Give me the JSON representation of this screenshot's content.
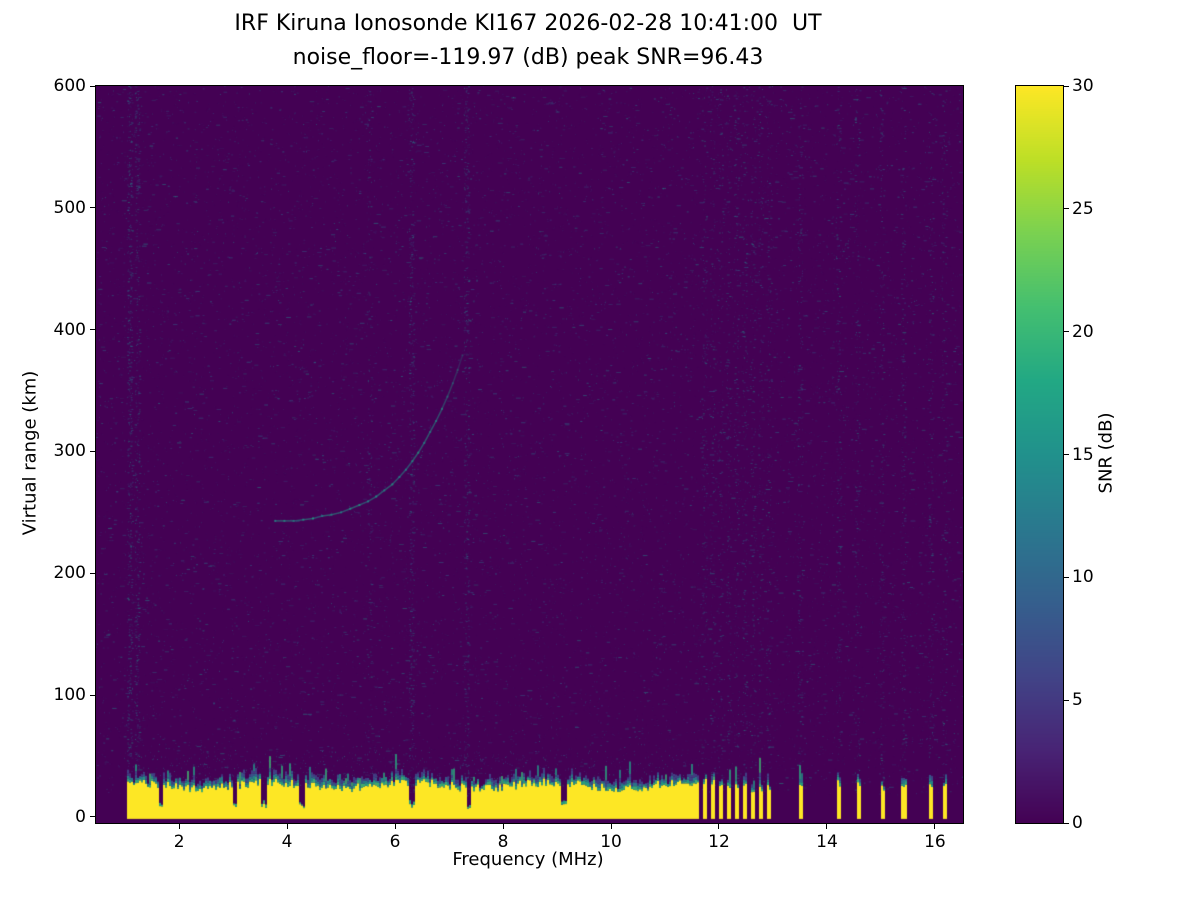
{
  "chart": {
    "title_line1": "IRF Kiruna Ionosonde KI167 2026-02-28 10:41:00  UT",
    "title_line2": "noise_floor=-119.97 (dB) peak SNR=96.43",
    "xlabel": "Frequency (MHz)",
    "ylabel": "Virtual range (km)",
    "colorbar_label": "SNR (dB)"
  },
  "chart_data": {
    "type": "heatmap",
    "title": "IRF Kiruna Ionosonde KI167 2026-02-28 10:41:00  UT",
    "subtitle": "noise_floor=-119.97 (dB) peak SNR=96.43",
    "station": "IRF Kiruna Ionosonde KI167",
    "timestamp_ut": "2026-02-28 10:41:00",
    "noise_floor_db": -119.97,
    "peak_snr_db": 96.43,
    "xlabel": "Frequency (MHz)",
    "ylabel": "Virtual range (km)",
    "xlim": [
      0.46,
      16.52
    ],
    "ylim": [
      -5,
      600
    ],
    "xticks": [
      2,
      4,
      6,
      8,
      10,
      12,
      14,
      16
    ],
    "yticks": [
      0,
      100,
      200,
      300,
      400,
      500,
      600
    ],
    "colorbar": {
      "label": "SNR (dB)",
      "ticks": [
        0,
        5,
        10,
        15,
        20,
        25,
        30
      ],
      "range": [
        0,
        30
      ],
      "colormap": "viridis"
    },
    "colormap_stops": [
      [
        0.0,
        "#440154"
      ],
      [
        0.1,
        "#482475"
      ],
      [
        0.2,
        "#414487"
      ],
      [
        0.3,
        "#355f8d"
      ],
      [
        0.4,
        "#2a788e"
      ],
      [
        0.5,
        "#21918c"
      ],
      [
        0.6,
        "#22a884"
      ],
      [
        0.7,
        "#44bf70"
      ],
      [
        0.8,
        "#7ad151"
      ],
      [
        0.9,
        "#bddf26"
      ],
      [
        1.0,
        "#fde725"
      ]
    ],
    "ground_clutter": {
      "continuous": [
        1.0,
        11.62
      ],
      "top_km_mean": 26,
      "stripes": [
        [
          11.68,
          11.76
        ],
        [
          11.83,
          11.91
        ],
        [
          11.98,
          12.06
        ],
        [
          12.13,
          12.21
        ],
        [
          12.28,
          12.36
        ],
        [
          12.43,
          12.51
        ],
        [
          12.58,
          12.66
        ],
        [
          12.73,
          12.81
        ],
        [
          12.88,
          12.96
        ],
        [
          13.46,
          13.54
        ],
        [
          14.17,
          14.25
        ],
        [
          14.52,
          14.6
        ],
        [
          14.97,
          15.05
        ],
        [
          15.37,
          15.45
        ],
        [
          15.88,
          15.96
        ],
        [
          16.13,
          16.21
        ]
      ],
      "notches": [
        1.65,
        3.02,
        3.55,
        4.25,
        6.3,
        7.35,
        9.12
      ]
    },
    "echo_trace": {
      "points": [
        [
          3.78,
          243
        ],
        [
          3.95,
          243
        ],
        [
          4.12,
          243
        ],
        [
          4.3,
          244
        ],
        [
          4.48,
          245
        ],
        [
          4.65,
          247
        ],
        [
          4.82,
          248
        ],
        [
          5.0,
          250
        ],
        [
          5.17,
          253
        ],
        [
          5.34,
          256
        ],
        [
          5.5,
          259
        ],
        [
          5.65,
          263
        ],
        [
          5.8,
          268
        ],
        [
          5.95,
          273
        ],
        [
          6.08,
          279
        ],
        [
          6.2,
          285
        ],
        [
          6.32,
          292
        ],
        [
          6.43,
          299
        ],
        [
          6.54,
          307
        ],
        [
          6.65,
          316
        ],
        [
          6.76,
          325
        ],
        [
          6.87,
          335
        ],
        [
          6.97,
          345
        ],
        [
          7.07,
          356
        ],
        [
          7.16,
          367
        ],
        [
          7.25,
          379
        ]
      ],
      "faint_extension": [
        [
          7.32,
          392
        ],
        [
          7.38,
          408
        ],
        [
          7.44,
          424
        ],
        [
          7.5,
          441
        ]
      ]
    },
    "rfi_columns": [
      [
        1.08,
        520
      ],
      [
        1.22,
        380
      ],
      [
        5.52,
        140
      ],
      [
        6.3,
        430
      ],
      [
        7.32,
        380
      ],
      [
        11.72,
        160
      ],
      [
        11.87,
        150
      ],
      [
        12.02,
        160
      ],
      [
        12.17,
        150
      ],
      [
        12.32,
        160
      ],
      [
        12.47,
        150
      ],
      [
        12.62,
        160
      ],
      [
        12.77,
        150
      ],
      [
        12.92,
        160
      ],
      [
        13.5,
        170
      ],
      [
        14.21,
        170
      ],
      [
        14.56,
        150
      ],
      [
        15.01,
        170
      ],
      [
        15.41,
        170
      ],
      [
        15.92,
        170
      ],
      [
        16.17,
        150
      ]
    ],
    "noise": {
      "speckle_count": 12000,
      "dash_count": 1700
    }
  }
}
